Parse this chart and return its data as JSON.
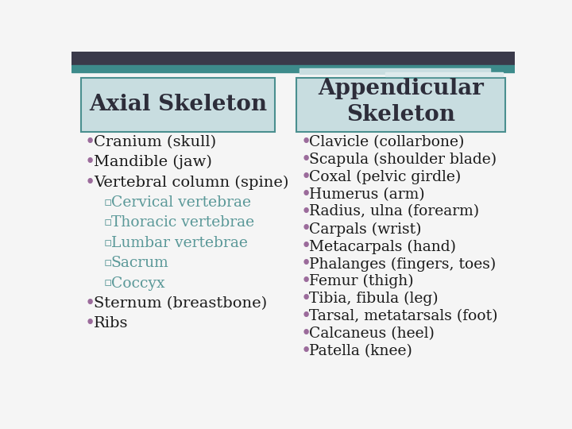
{
  "bg_color": "#f5f5f5",
  "top_bar_color": "#3a3a4a",
  "top_bar_teal_color": "#3d8b8b",
  "top_bar_light_color": "#c8dde0",
  "header_box_color": "#c8dde0",
  "header_box_border": "#4a8f8f",
  "header_text_color": "#2d2d3a",
  "bullet_color_main": "#9b6b9b",
  "bullet_color_sub": "#5a9898",
  "text_color_main": "#1a1a1a",
  "text_color_sub": "#5a9898",
  "axial_title": "Axial Skeleton",
  "appendicular_title": "Appendicular\nSkeleton",
  "axial_items": [
    {
      "text": "Cranium (skull)",
      "level": 0
    },
    {
      "text": "Mandible (jaw)",
      "level": 0
    },
    {
      "text": "Vertebral column (spine)",
      "level": 0
    },
    {
      "text": "Cervical vertebrae",
      "level": 1
    },
    {
      "text": "Thoracic vertebrae",
      "level": 1
    },
    {
      "text": "Lumbar vertebrae",
      "level": 1
    },
    {
      "text": "Sacrum",
      "level": 1
    },
    {
      "text": "Coccyx",
      "level": 1
    },
    {
      "text": "Sternum (breastbone)",
      "level": 0
    },
    {
      "text": "Ribs",
      "level": 0
    }
  ],
  "appendicular_items": [
    "Clavicle (collarbone)",
    "Scapula (shoulder blade)",
    "Coxal (pelvic girdle)",
    "Humerus (arm)",
    "Radius, ulna (forearm)",
    "Carpals (wrist)",
    "Metacarpals (hand)",
    "Phalanges (fingers, toes)",
    "Femur (thigh)",
    "Tibia, fibula (leg)",
    "Tarsal, metatarsals (foot)",
    "Calcaneus (heel)",
    "Patella (knee)"
  ]
}
